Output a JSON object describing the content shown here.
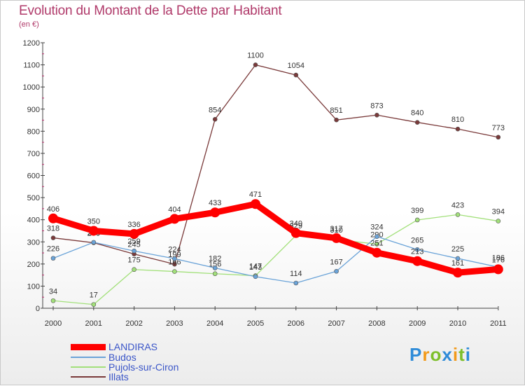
{
  "title": "Evolution du Montant de la Dette par Habitant",
  "unit": "(en €)",
  "brand": {
    "text": "Proxiti",
    "letters": [
      {
        "ch": "P",
        "color": "#2e8bd8"
      },
      {
        "ch": "r",
        "color": "#f29a1a"
      },
      {
        "ch": "o",
        "color": "#7dbf2a"
      },
      {
        "ch": "x",
        "color": "#2e8bd8"
      },
      {
        "ch": "i",
        "color": "#f29a1a"
      },
      {
        "ch": "t",
        "color": "#7dbf2a"
      },
      {
        "ch": "i",
        "color": "#2e8bd8"
      }
    ]
  },
  "chart_data": {
    "type": "line",
    "x": [
      "2000",
      "2001",
      "2002",
      "2003",
      "2004",
      "2005",
      "2006",
      "2007",
      "2008",
      "2009",
      "2010",
      "2011"
    ],
    "ylim": [
      0,
      1200
    ],
    "yticks": [
      0,
      100,
      200,
      300,
      400,
      500,
      600,
      700,
      800,
      900,
      1000,
      1100,
      1200
    ],
    "grid": false,
    "legend_position": "bottom-left",
    "series": [
      {
        "name": "LANDIRAS",
        "color": "#ff0000",
        "values": [
          406,
          350,
          336,
          404,
          433,
          471,
          340,
          317,
          251,
          213,
          161,
          176
        ]
      },
      {
        "name": "Budos",
        "color": "#6aa3d8",
        "values": [
          226,
          298,
          259,
          224,
          182,
          143,
          114,
          167,
          324,
          265,
          225,
          186
        ]
      },
      {
        "name": "Pujols-sur-Ciron",
        "color": "#a2e07a",
        "values": [
          34,
          17,
          175,
          166,
          156,
          147,
          329,
          310,
          290,
          399,
          423,
          394
        ]
      },
      {
        "name": "Illats",
        "color": "#7a3a3a",
        "values": [
          318,
          296,
          245,
          199,
          854,
          1100,
          1054,
          851,
          873,
          840,
          810,
          773
        ]
      }
    ]
  }
}
